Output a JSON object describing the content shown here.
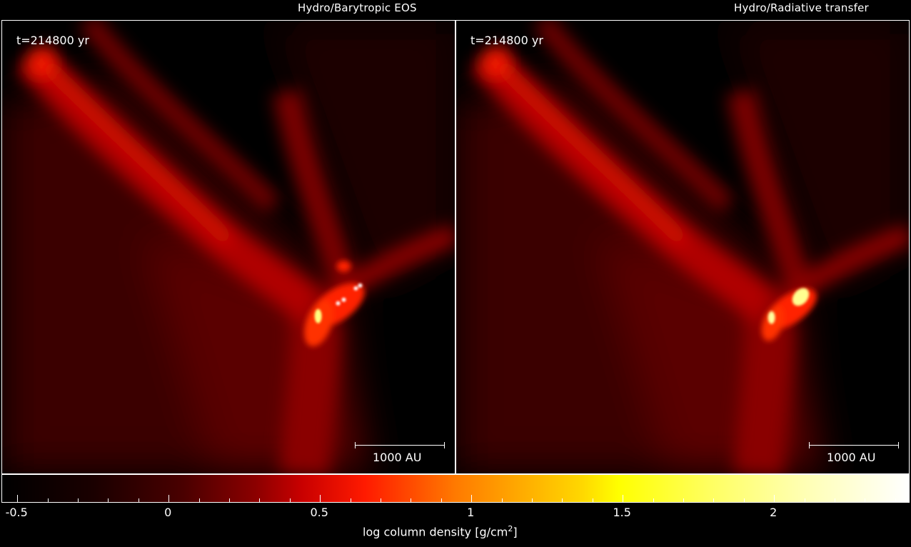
{
  "panels": [
    {
      "title": "Hydro/Barytropic EOS",
      "time": "t=214800 yr",
      "scale_label": "1000 AU"
    },
    {
      "title": "Hydro/Radiative transfer",
      "time": "t=214800 yr",
      "scale_label": "1000 AU"
    }
  ],
  "colorbar": {
    "tick_labels": [
      "-0.5",
      "0",
      "0.5",
      "1",
      "1.5",
      "2"
    ],
    "tick_values": [
      -0.5,
      0,
      0.5,
      1,
      1.5,
      2
    ],
    "range": [
      -0.55,
      2.45
    ],
    "title_main": "log column density [g/cm",
    "title_sup": "2",
    "title_end": "]"
  },
  "colors": {
    "background": "#000000",
    "text": "#ffffff"
  }
}
